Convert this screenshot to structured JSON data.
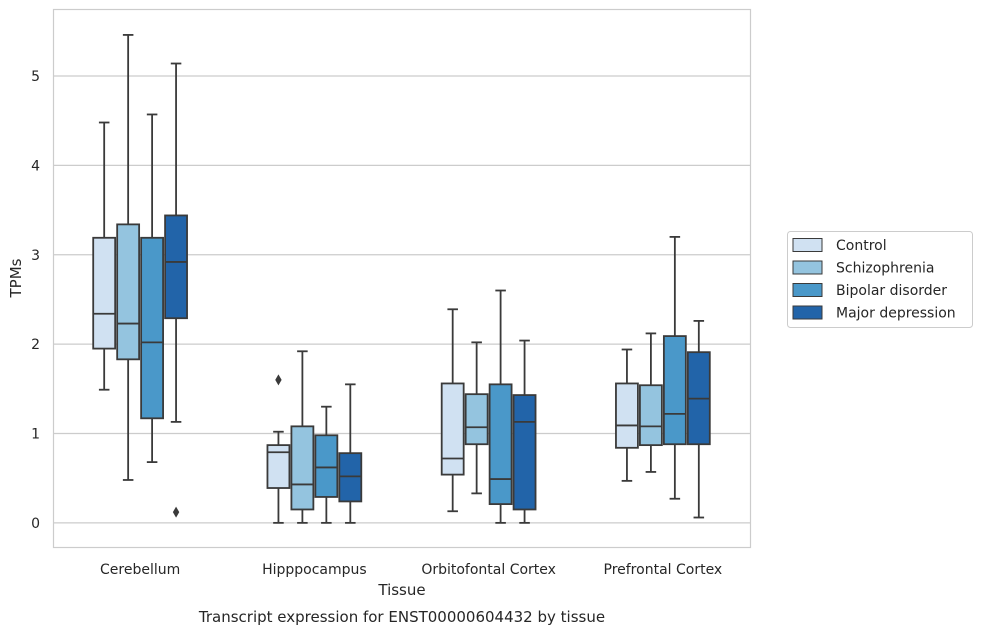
{
  "chart_data": {
    "type": "boxplot",
    "xlabel": "Tissue",
    "ylabel": "TPMs",
    "caption": "Transcript expression for ENST00000604432 by tissue",
    "ylim": [
      -0.27,
      5.75
    ],
    "yticks": [
      0,
      1,
      2,
      3,
      4,
      5
    ],
    "grid": "horizontal",
    "legend_position": "right",
    "categories": [
      "Cerebellum",
      "Hipppocampus",
      "Orbitofontal Cortex",
      "Prefrontal Cortex"
    ],
    "series": [
      {
        "name": "Control",
        "color": "#d0e1f2",
        "boxes": [
          {
            "whislo": 1.49,
            "q1": 1.95,
            "med": 2.34,
            "q3": 3.19,
            "whishi": 4.48,
            "fliers": []
          },
          {
            "whislo": 0.0,
            "q1": 0.39,
            "med": 0.79,
            "q3": 0.87,
            "whishi": 1.02,
            "fliers": [
              1.6
            ]
          },
          {
            "whislo": 0.13,
            "q1": 0.54,
            "med": 0.72,
            "q3": 1.56,
            "whishi": 2.39,
            "fliers": []
          },
          {
            "whislo": 0.47,
            "q1": 0.84,
            "med": 1.09,
            "q3": 1.56,
            "whishi": 1.94,
            "fliers": []
          }
        ]
      },
      {
        "name": "Schizophrenia",
        "color": "#94c4df",
        "boxes": [
          {
            "whislo": 0.48,
            "q1": 1.83,
            "med": 2.23,
            "q3": 3.34,
            "whishi": 5.46,
            "fliers": []
          },
          {
            "whislo": 0.0,
            "q1": 0.15,
            "med": 0.43,
            "q3": 1.08,
            "whishi": 1.92,
            "fliers": []
          },
          {
            "whislo": 0.33,
            "q1": 0.88,
            "med": 1.07,
            "q3": 1.44,
            "whishi": 2.02,
            "fliers": []
          },
          {
            "whislo": 0.57,
            "q1": 0.87,
            "med": 1.08,
            "q3": 1.54,
            "whishi": 2.12,
            "fliers": []
          }
        ]
      },
      {
        "name": "Bipolar disorder",
        "color": "#4a98c9",
        "boxes": [
          {
            "whislo": 0.68,
            "q1": 1.17,
            "med": 2.02,
            "q3": 3.19,
            "whishi": 4.57,
            "fliers": []
          },
          {
            "whislo": 0.0,
            "q1": 0.29,
            "med": 0.62,
            "q3": 0.98,
            "whishi": 1.3,
            "fliers": []
          },
          {
            "whislo": 0.0,
            "q1": 0.21,
            "med": 0.49,
            "q3": 1.55,
            "whishi": 2.6,
            "fliers": []
          },
          {
            "whislo": 0.27,
            "q1": 0.88,
            "med": 1.22,
            "q3": 2.09,
            "whishi": 3.2,
            "fliers": []
          }
        ]
      },
      {
        "name": "Major depression",
        "color": "#2264a9",
        "boxes": [
          {
            "whislo": 1.13,
            "q1": 2.29,
            "med": 2.92,
            "q3": 3.44,
            "whishi": 5.14,
            "fliers": [
              0.12
            ]
          },
          {
            "whislo": 0.0,
            "q1": 0.24,
            "med": 0.52,
            "q3": 0.78,
            "whishi": 1.55,
            "fliers": []
          },
          {
            "whislo": 0.0,
            "q1": 0.15,
            "med": 1.13,
            "q3": 1.43,
            "whishi": 2.04,
            "fliers": []
          },
          {
            "whislo": 0.06,
            "q1": 0.88,
            "med": 1.39,
            "q3": 1.91,
            "whishi": 2.26,
            "fliers": []
          }
        ]
      }
    ]
  }
}
